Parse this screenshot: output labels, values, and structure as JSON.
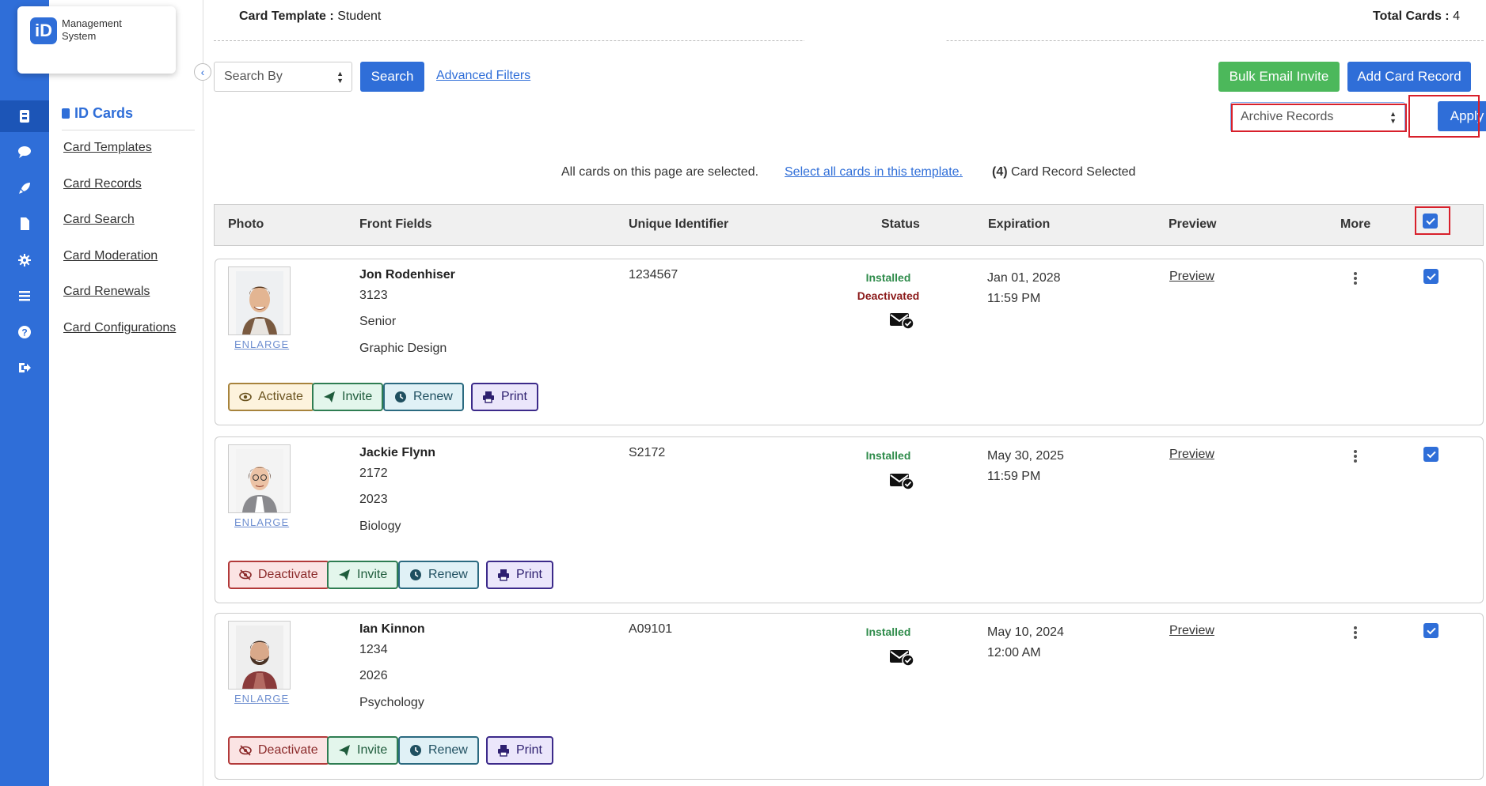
{
  "brand": {
    "badge": "iD",
    "name": "Management\nSystem"
  },
  "subnav": {
    "title": "ID Cards",
    "links": [
      "Card Templates",
      "Card Records",
      "Card Search",
      "Card Moderation",
      "Card Renewals",
      "Card Configurations"
    ]
  },
  "header": {
    "template_label": "Card Template :",
    "template_value": "Student",
    "total_label": "Total Cards :",
    "total_value": "4"
  },
  "toolbar": {
    "search_by": "Search By",
    "search_btn": "Search",
    "advanced_filters": "Advanced Filters",
    "bulk_email": "Bulk Email Invite",
    "add_card": "Add Card Record",
    "bulk_action": "Archive Records",
    "apply": "Apply"
  },
  "selection": {
    "page_msg": "All cards on this page are selected.",
    "select_all_link": "Select all cards in this template.",
    "count": "(4)",
    "count_msg": "Card Record Selected"
  },
  "table": {
    "headers": [
      "Photo",
      "Front Fields",
      "Unique Identifier",
      "Status",
      "Expiration",
      "Preview",
      "More"
    ],
    "enlarge": "ENLARGE",
    "preview": "Preview",
    "rows": [
      {
        "name": "Jon Rodenhiser",
        "f1": "3123",
        "f2": "Senior",
        "f3": "Graphic Design",
        "uid": "1234567",
        "status1": "Installed",
        "status2": "Deactivated",
        "exp_date": "Jan 01, 2028",
        "exp_time": "11:59 PM",
        "toggle": "Activate",
        "invite": "Invite",
        "renew": "Renew",
        "print": "Print"
      },
      {
        "name": "Jackie Flynn",
        "f1": "2172",
        "f2": "2023",
        "f3": "Biology",
        "uid": "S2172",
        "status1": "Installed",
        "status2": "",
        "exp_date": "May 30, 2025",
        "exp_time": "11:59 PM",
        "toggle": "Deactivate",
        "invite": "Invite",
        "renew": "Renew",
        "print": "Print"
      },
      {
        "name": "Ian Kinnon",
        "f1": "1234",
        "f2": "2026",
        "f3": "Psychology",
        "uid": "A09101",
        "status1": "Installed",
        "status2": "",
        "exp_date": "May 10, 2024",
        "exp_time": "12:00 AM",
        "toggle": "Deactivate",
        "invite": "Invite",
        "renew": "Renew",
        "print": "Print"
      }
    ]
  },
  "colors": {
    "primary": "#2f6ed8",
    "green": "#4cb85b",
    "highlight": "#d8202b"
  }
}
